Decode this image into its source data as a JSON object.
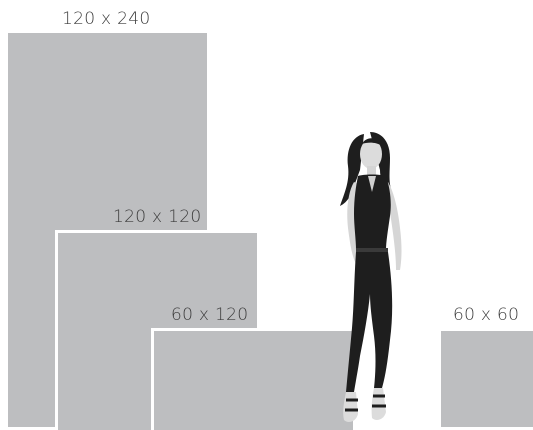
{
  "panels": {
    "p_120x240": {
      "label": "120 x 240"
    },
    "p_120x120": {
      "label": "120 x 120"
    },
    "p_60x120": {
      "label": "60 x 120"
    },
    "p_60x60": {
      "label": "60 x 60"
    }
  },
  "colors": {
    "panel_fill": "#bdbec0",
    "label_text": "#3c3c3c",
    "background": "#ffffff",
    "figure_dark": "#1e1e1e",
    "figure_skin": "#dcdcdc"
  }
}
